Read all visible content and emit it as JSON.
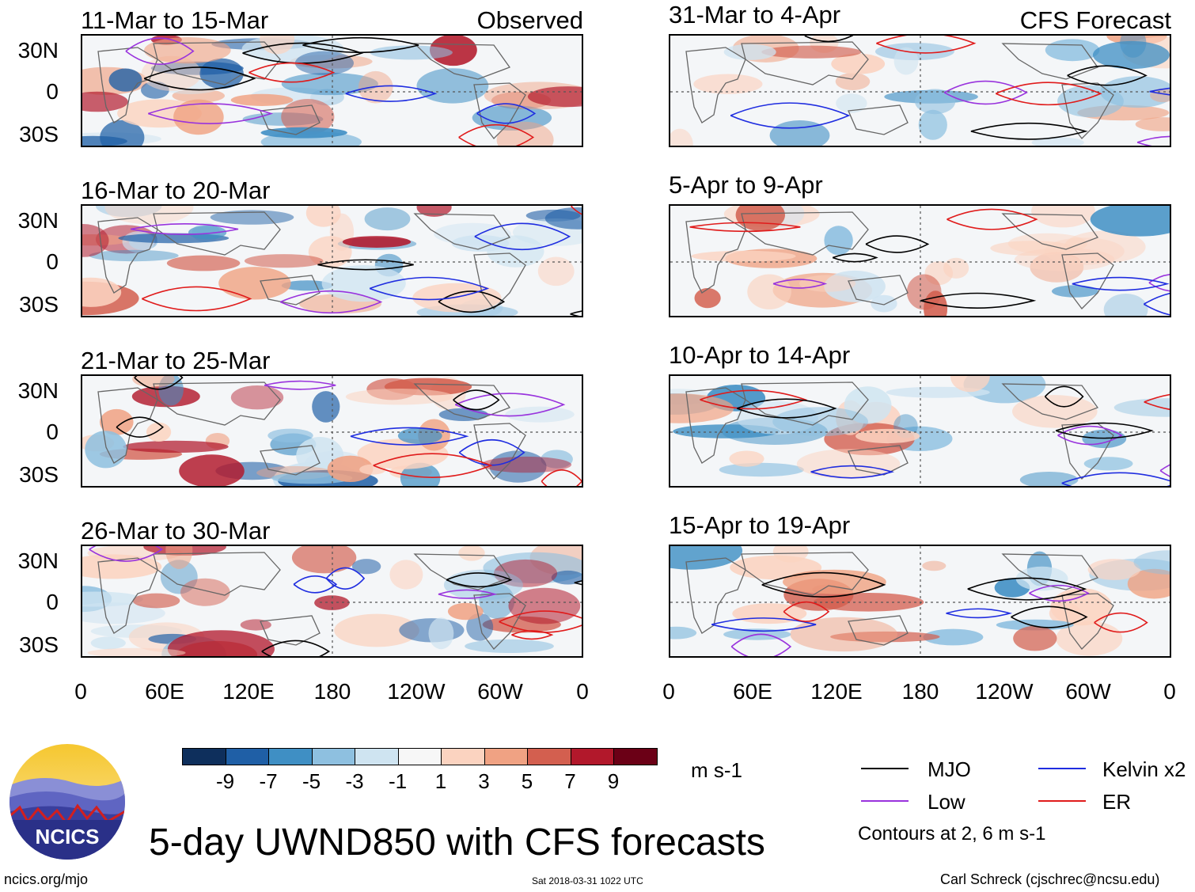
{
  "observed_header": "Observed",
  "forecast_header": "CFS Forecast",
  "panels_left": [
    {
      "title": "11-Mar to 15-Mar"
    },
    {
      "title": "16-Mar to 20-Mar"
    },
    {
      "title": "21-Mar to 25-Mar"
    },
    {
      "title": "26-Mar to 30-Mar"
    }
  ],
  "panels_right": [
    {
      "title": "31-Mar to 4-Apr"
    },
    {
      "title": "5-Apr to 9-Apr"
    },
    {
      "title": "10-Apr to 14-Apr"
    },
    {
      "title": "15-Apr to 19-Apr"
    }
  ],
  "y_ticks": [
    "30N",
    "0",
    "30S"
  ],
  "x_ticks": [
    "0",
    "60E",
    "120E",
    "180",
    "120W",
    "60W",
    "0"
  ],
  "colorbar": {
    "labels": [
      "-9",
      "-7",
      "-5",
      "-3",
      "-1",
      "1",
      "3",
      "5",
      "7",
      "9"
    ],
    "colors": [
      "#0e2f5c",
      "#1f5fa6",
      "#3f8fc4",
      "#8ec0e0",
      "#cfe4f1",
      "#f7f7f7",
      "#fbd3c0",
      "#f0a283",
      "#d35f4f",
      "#b2182b",
      "#6b0016"
    ],
    "units": "m s-1"
  },
  "legend": {
    "items": [
      {
        "label": "MJO",
        "color": "#000000"
      },
      {
        "label": "Kelvin x2",
        "color": "#1f2de0"
      },
      {
        "label": "Low",
        "color": "#9933dd"
      },
      {
        "label": "ER",
        "color": "#e01b1b"
      }
    ],
    "note": "Contours at 2, 6 m s-1"
  },
  "title": "5-day UWND850 with CFS forecasts",
  "logo_text": "NCICS",
  "footer": {
    "url": "ncics.org/mjo",
    "timestamp": "Sat 2018-03-31 1022 UTC",
    "author": "Carl Schreck (cjschrec@ncsu.edu)"
  }
}
